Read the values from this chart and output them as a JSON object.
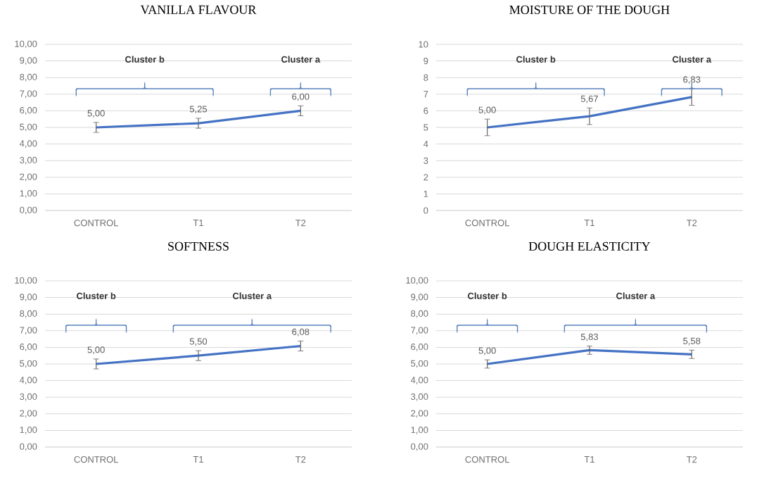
{
  "chart_data": [
    {
      "type": "line",
      "title": "VANILLA FLAVOUR",
      "categories": [
        "CONTROL",
        "T1",
        "T2"
      ],
      "values": [
        5.0,
        5.25,
        6.0
      ],
      "errors": [
        0.3,
        0.3,
        0.3
      ],
      "value_labels": [
        "5,00",
        "5,25",
        "6,00"
      ],
      "color": "#4472c4",
      "ylim": [
        0,
        10
      ],
      "yticks": [
        {
          "value": 0,
          "label": "0,00"
        },
        {
          "value": 1,
          "label": "1,00"
        },
        {
          "value": 2,
          "label": "2,00"
        },
        {
          "value": 3,
          "label": "3,00"
        },
        {
          "value": 4,
          "label": "4,00"
        },
        {
          "value": 5,
          "label": "5,00"
        },
        {
          "value": 6,
          "label": "6,00"
        },
        {
          "value": 7,
          "label": "7,00"
        },
        {
          "value": 8,
          "label": "8,00"
        },
        {
          "value": 9,
          "label": "9,00"
        },
        {
          "value": 10,
          "label": "10,00"
        }
      ],
      "grid": "y",
      "marker": "none",
      "annotations": [
        "Cluster b",
        "Cluster a"
      ]
    },
    {
      "type": "line",
      "title": "MOISTURE OF THE DOUGH",
      "categories": [
        "CONTROL",
        "T1",
        "T2"
      ],
      "values": [
        5.0,
        5.67,
        6.83
      ],
      "errors": [
        0.5,
        0.5,
        0.5
      ],
      "value_labels": [
        "5,00",
        "5,67",
        "6,83"
      ],
      "color": "#4472c4",
      "ylim": [
        0,
        10
      ],
      "yticks": [
        0,
        1,
        2,
        3,
        4,
        5,
        6,
        7,
        8,
        9,
        10
      ],
      "grid": "y",
      "marker": "none",
      "annotations": [
        "Cluster b",
        "Cluster a"
      ]
    },
    {
      "type": "line",
      "title": "SOFTNESS",
      "categories": [
        "CONTROL",
        "T1",
        "T2"
      ],
      "values": [
        5.0,
        5.5,
        6.08
      ],
      "errors": [
        0.3,
        0.3,
        0.3
      ],
      "value_labels": [
        "5,00",
        "5,50",
        "6,08"
      ],
      "color": "#4472c4",
      "ylim": [
        0,
        10
      ],
      "yticks": [
        {
          "value": 0,
          "label": "0,00"
        },
        {
          "value": 1,
          "label": "1,00"
        },
        {
          "value": 2,
          "label": "2,00"
        },
        {
          "value": 3,
          "label": "3,00"
        },
        {
          "value": 4,
          "label": "4,00"
        },
        {
          "value": 5,
          "label": "5,00"
        },
        {
          "value": 6,
          "label": "6,00"
        },
        {
          "value": 7,
          "label": "7,00"
        },
        {
          "value": 8,
          "label": "8,00"
        },
        {
          "value": 9,
          "label": "9,00"
        },
        {
          "value": 10,
          "label": "10,00"
        }
      ],
      "grid": "y",
      "marker": "none",
      "annotations": [
        "Cluster b",
        "Cluster a"
      ]
    },
    {
      "type": "line",
      "title": "DOUGH ELASTICITY",
      "categories": [
        "CONTROL",
        "T1",
        "T2"
      ],
      "values": [
        5.0,
        5.83,
        5.58
      ],
      "errors": [
        0.25,
        0.25,
        0.25
      ],
      "value_labels": [
        "5,00",
        "5,83",
        "5,58"
      ],
      "color": "#4472c4",
      "ylim": [
        0,
        10
      ],
      "yticks": [
        {
          "value": 0,
          "label": "0,00"
        },
        {
          "value": 1,
          "label": "1,00"
        },
        {
          "value": 2,
          "label": "2,00"
        },
        {
          "value": 3,
          "label": "3,00"
        },
        {
          "value": 4,
          "label": "4,00"
        },
        {
          "value": 5,
          "label": "5,00"
        },
        {
          "value": 6,
          "label": "6,00"
        },
        {
          "value": 7,
          "label": "7,00"
        },
        {
          "value": 8,
          "label": "8,00"
        },
        {
          "value": 9,
          "label": "9,00"
        },
        {
          "value": 10,
          "label": "10,00"
        }
      ],
      "grid": "y",
      "marker": "none",
      "annotations": [
        "Cluster b",
        "Cluster a"
      ]
    }
  ]
}
